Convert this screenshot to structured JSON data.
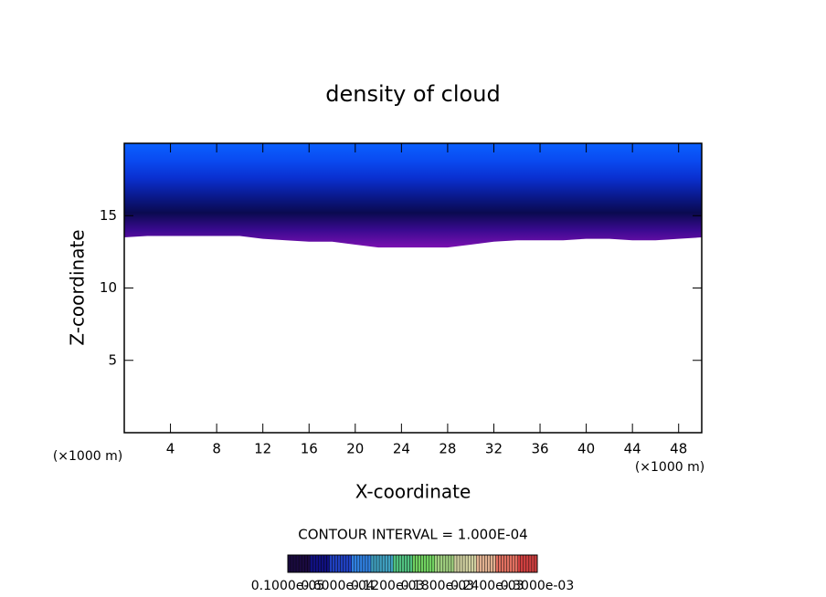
{
  "chart_data": {
    "type": "contour",
    "title": "density of cloud",
    "x_label": "X-coordinate",
    "y_label": "Z-coordinate",
    "x_unit_label": "(×1000 m)",
    "y_unit_label": "(×1000 m)",
    "xlim": [
      0,
      50
    ],
    "ylim": [
      0,
      20
    ],
    "xticks": [
      4,
      8,
      12,
      16,
      20,
      24,
      28,
      32,
      36,
      40,
      44,
      48
    ],
    "yticks": [
      5,
      10,
      15
    ],
    "x": [
      0,
      2,
      4,
      6,
      8,
      10,
      12,
      14,
      16,
      18,
      20,
      22,
      24,
      26,
      28,
      30,
      32,
      34,
      36,
      38,
      40,
      42,
      44,
      46,
      48,
      50
    ],
    "cloud_base": [
      13.5,
      13.6,
      13.6,
      13.6,
      13.6,
      13.6,
      13.4,
      13.3,
      13.2,
      13.2,
      13.0,
      12.8,
      12.8,
      12.8,
      12.8,
      13.0,
      13.2,
      13.3,
      13.3,
      13.3,
      13.4,
      13.4,
      13.3,
      13.3,
      13.4,
      13.5
    ],
    "cloud_top": [
      20,
      20,
      20,
      20,
      20,
      20,
      20,
      20,
      20,
      20,
      20,
      20,
      20,
      20,
      20,
      20,
      20,
      20,
      20,
      20,
      20,
      20,
      20,
      20,
      20,
      20
    ],
    "fill_colors": [
      "#7a10b0",
      "#3a0a90",
      "#0a0a50",
      "#0a1a90",
      "#0a30d0",
      "#0a4af0",
      "#0a60ff"
    ],
    "contour_interval_label": "CONTOUR INTERVAL = 1.000E-04",
    "colorbar_colors": [
      "#1a0a40",
      "#101080",
      "#2040c0",
      "#3080e0",
      "#40a0c0",
      "#50c080",
      "#70d060",
      "#a0d080",
      "#d0d0a0",
      "#e0b090",
      "#e07060",
      "#d04040"
    ],
    "colorbar_labels": [
      "0.1000e-05",
      "0.6000e-04",
      "0.1200e-03",
      "0.1800e-03",
      "0.2400e-03",
      "0.3000e-03"
    ]
  }
}
